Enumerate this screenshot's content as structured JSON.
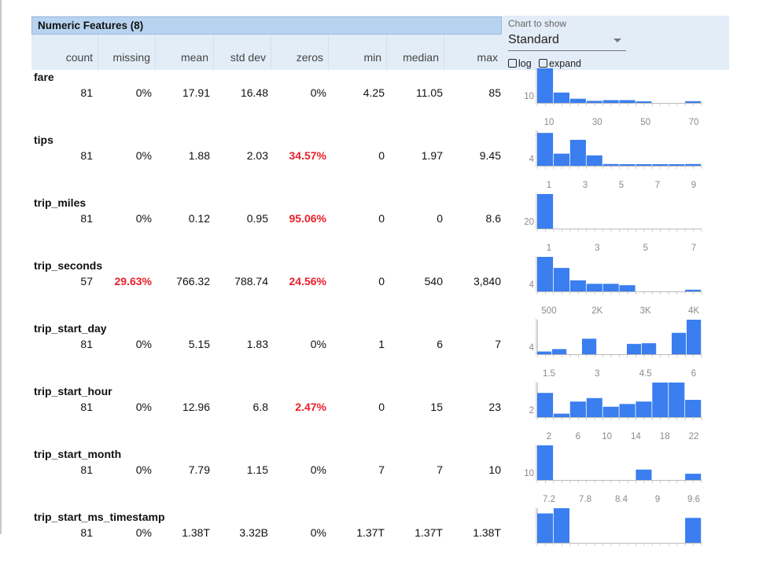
{
  "header": {
    "title": "Numeric Features (8)",
    "columns": [
      "count",
      "missing",
      "mean",
      "std dev",
      "zeros",
      "min",
      "median",
      "max"
    ]
  },
  "chart_control": {
    "label": "Chart to show",
    "selected": "Standard",
    "log_label": "log",
    "expand_label": "expand"
  },
  "colors": {
    "bar": "#3a7ef0",
    "red": "#e8202b",
    "header": "#e3edf8",
    "title": "#b8d3ef"
  },
  "features": [
    {
      "name": "fare",
      "count": "81",
      "missing": "0%",
      "mean": "17.91",
      "std": "16.48",
      "zeros": "0%",
      "min": "4.25",
      "median": "11.05",
      "max": "85",
      "ytick": "10",
      "xticks": [
        "10",
        "30",
        "50",
        "70"
      ],
      "bars": [
        1.0,
        0.3,
        0.12,
        0.06,
        0.08,
        0.08,
        0.02,
        0.0,
        0.0,
        0.05
      ]
    },
    {
      "name": "tips",
      "count": "81",
      "missing": "0%",
      "mean": "1.88",
      "std": "2.03",
      "zeros": "34.57%",
      "min": "0",
      "median": "1.97",
      "max": "9.45",
      "ytick": "4",
      "xticks": [
        "1",
        "3",
        "5",
        "7",
        "9"
      ],
      "bars": [
        0.95,
        0.35,
        0.75,
        0.3,
        0.05,
        0.02,
        0.02,
        0.02,
        0.02,
        0.05
      ]
    },
    {
      "name": "trip_miles",
      "count": "81",
      "missing": "0%",
      "mean": "0.12",
      "std": "0.95",
      "zeros": "95.06%",
      "min": "0",
      "median": "0",
      "max": "8.6",
      "ytick": "20",
      "xticks": [
        "1",
        "3",
        "5",
        "7"
      ],
      "bars": [
        1.0,
        0,
        0,
        0,
        0,
        0,
        0,
        0,
        0,
        0
      ]
    },
    {
      "name": "trip_seconds",
      "count": "57",
      "missing": "29.63%",
      "mean": "766.32",
      "std": "788.74",
      "zeros": "24.56%",
      "min": "0",
      "median": "540",
      "max": "3,840",
      "ytick": "4",
      "xticks": [
        "500",
        "2K",
        "3K",
        "4K"
      ],
      "bars": [
        1.0,
        0.68,
        0.32,
        0.22,
        0.22,
        0.18,
        0,
        0,
        0,
        0.05
      ]
    },
    {
      "name": "trip_start_day",
      "count": "81",
      "missing": "0%",
      "mean": "5.15",
      "std": "1.83",
      "zeros": "0%",
      "min": "1",
      "median": "6",
      "max": "7",
      "ytick": "4",
      "xticks": [
        "1.5",
        "3",
        "4.5",
        "6"
      ],
      "bars": [
        0.08,
        0.15,
        0,
        0.45,
        0,
        0,
        0.3,
        0.32,
        0,
        0.62,
        1.0
      ]
    },
    {
      "name": "trip_start_hour",
      "count": "81",
      "missing": "0%",
      "mean": "12.96",
      "std": "6.8",
      "zeros": "2.47%",
      "min": "0",
      "median": "15",
      "max": "23",
      "ytick": "2",
      "xticks": [
        "2",
        "6",
        "10",
        "14",
        "18",
        "22"
      ],
      "bars": [
        0.7,
        0.1,
        0.45,
        0.55,
        0.3,
        0.38,
        0.45,
        1.0,
        1.0,
        0.5
      ]
    },
    {
      "name": "trip_start_month",
      "count": "81",
      "missing": "0%",
      "mean": "7.79",
      "std": "1.15",
      "zeros": "0%",
      "min": "7",
      "median": "7",
      "max": "10",
      "ytick": "10",
      "xticks": [
        "7.2",
        "7.8",
        "8.4",
        "9",
        "9.6"
      ],
      "bars": [
        1.0,
        0,
        0,
        0,
        0,
        0,
        0.3,
        0,
        0,
        0.18
      ]
    },
    {
      "name": "trip_start_ms_timestamp",
      "count": "81",
      "missing": "0%",
      "mean": "1.38T",
      "std": "3.32B",
      "zeros": "0%",
      "min": "1.37T",
      "median": "1.37T",
      "max": "1.38T",
      "ytick": "",
      "xticks": [],
      "bars": [
        0.85,
        1.0,
        0,
        0,
        0,
        0,
        0,
        0,
        0,
        0.72
      ]
    }
  ]
}
